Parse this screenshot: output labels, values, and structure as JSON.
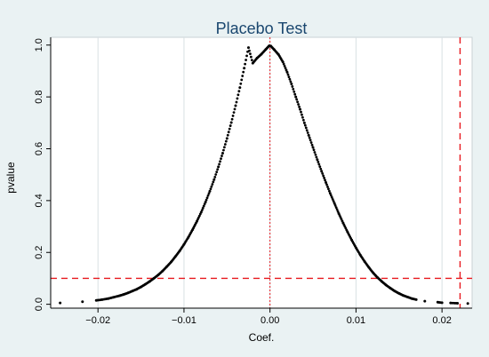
{
  "chart_data": {
    "type": "scatter",
    "title": "Placebo Test",
    "xlabel": "Coef.",
    "ylabel": "pvalue",
    "xlim": [
      -0.0255,
      0.0235
    ],
    "ylim": [
      -0.015,
      1.03
    ],
    "x_ticks": [
      -0.02,
      -0.01,
      0.0,
      0.01,
      0.02
    ],
    "x_tick_labels": [
      "−0.02",
      "−0.01",
      "0.00",
      "0.01",
      "0.02"
    ],
    "y_ticks": [
      0.0,
      0.2,
      0.4,
      0.6,
      0.8,
      1.0
    ],
    "y_tick_labels": [
      "0.0",
      "0.2",
      "0.4",
      "0.6",
      "0.8",
      "1.0"
    ],
    "grid": {
      "x": true,
      "y": false
    },
    "colors": {
      "background": "#eaf2f3",
      "plot": "#ffffff",
      "points": "#000000",
      "reference": "#e8191f",
      "grid": "#d8e0e3",
      "title": "#1a476f"
    },
    "reference_lines": [
      {
        "orientation": "vertical",
        "value": 0.0,
        "style": "dotted"
      },
      {
        "orientation": "vertical",
        "value": 0.0221,
        "style": "dashed"
      },
      {
        "orientation": "horizontal",
        "value": 0.1,
        "style": "dashed"
      }
    ],
    "points": {
      "x": [
        -0.0244,
        -0.0218,
        -0.0202,
        -0.0195,
        -0.0188,
        -0.0182,
        -0.0175,
        -0.017,
        -0.0165,
        -0.016,
        -0.0155,
        -0.015,
        -0.0145,
        -0.014,
        -0.0135,
        -0.013,
        -0.0125,
        -0.012,
        -0.0115,
        -0.011,
        -0.0105,
        -0.01,
        -0.0095,
        -0.009,
        -0.0085,
        -0.008,
        -0.0075,
        -0.007,
        -0.0065,
        -0.006,
        -0.0055,
        -0.005,
        -0.0045,
        -0.004,
        -0.0035,
        -0.003,
        -0.0025,
        -0.002,
        -0.0015,
        -0.001,
        -0.0005,
        -0.0001,
        0.0001,
        0.0005,
        0.001,
        0.0015,
        0.002,
        0.0025,
        0.003,
        0.0035,
        0.004,
        0.0045,
        0.005,
        0.0055,
        0.006,
        0.0065,
        0.007,
        0.0075,
        0.008,
        0.0085,
        0.009,
        0.0095,
        0.01,
        0.0105,
        0.011,
        0.0115,
        0.012,
        0.0125,
        0.013,
        0.0135,
        0.014,
        0.0145,
        0.015,
        0.0155,
        0.016,
        0.0165,
        0.017,
        0.018,
        0.0195,
        0.02,
        0.021,
        0.0218,
        0.023
      ],
      "y": [
        0.005,
        0.01,
        0.015,
        0.018,
        0.022,
        0.027,
        0.033,
        0.038,
        0.044,
        0.051,
        0.058,
        0.067,
        0.077,
        0.088,
        0.1,
        0.113,
        0.128,
        0.145,
        0.163,
        0.184,
        0.206,
        0.231,
        0.258,
        0.288,
        0.32,
        0.355,
        0.394,
        0.436,
        0.481,
        0.53,
        0.583,
        0.64,
        0.701,
        0.766,
        0.836,
        0.911,
        0.99,
        0.93,
        0.95,
        0.965,
        0.983,
        0.997,
        0.996,
        0.982,
        0.963,
        0.935,
        0.895,
        0.85,
        0.8,
        0.752,
        0.7,
        0.652,
        0.605,
        0.558,
        0.513,
        0.47,
        0.428,
        0.389,
        0.35,
        0.314,
        0.28,
        0.248,
        0.218,
        0.19,
        0.165,
        0.142,
        0.121,
        0.103,
        0.088,
        0.074,
        0.062,
        0.051,
        0.042,
        0.034,
        0.028,
        0.022,
        0.018,
        0.012,
        0.008,
        0.006,
        0.005,
        0.004,
        0.003
      ]
    }
  }
}
